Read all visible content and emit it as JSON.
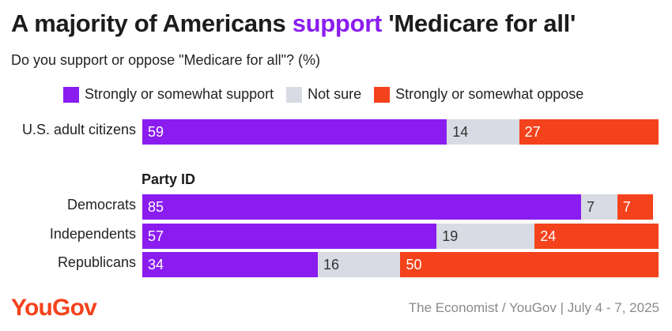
{
  "title": {
    "before": "A majority of Americans ",
    "highlight": "support",
    "after": " 'Medicare for all'"
  },
  "subtitle": "Do you support or oppose \"Medicare for all\"? (%)",
  "colors": {
    "support": "#8a1cf0",
    "not_sure": "#d8dbe3",
    "oppose": "#f4421c",
    "logo": "#f4421c"
  },
  "chart_data": {
    "type": "bar",
    "orientation": "horizontal-stacked",
    "title": "A majority of Americans support 'Medicare for all'",
    "subtitle": "Do you support or oppose \"Medicare for all\"? (%)",
    "legend": [
      "Strongly or somewhat support",
      "Not sure",
      "Strongly or somewhat oppose"
    ],
    "legend_position": "top",
    "xlim": [
      0,
      100
    ],
    "group_label": "Party ID",
    "categories": [
      "U.S. adult citizens",
      "Democrats",
      "Independents",
      "Republicans"
    ],
    "series": [
      {
        "name": "Strongly or somewhat support",
        "values": [
          59,
          85,
          57,
          34
        ]
      },
      {
        "name": "Not sure",
        "values": [
          14,
          7,
          19,
          16
        ]
      },
      {
        "name": "Strongly or somewhat oppose",
        "values": [
          27,
          7,
          24,
          50
        ]
      }
    ]
  },
  "footer": {
    "logo": "YouGov",
    "source": "The Economist / YouGov | July 4 - 7, 2025"
  }
}
